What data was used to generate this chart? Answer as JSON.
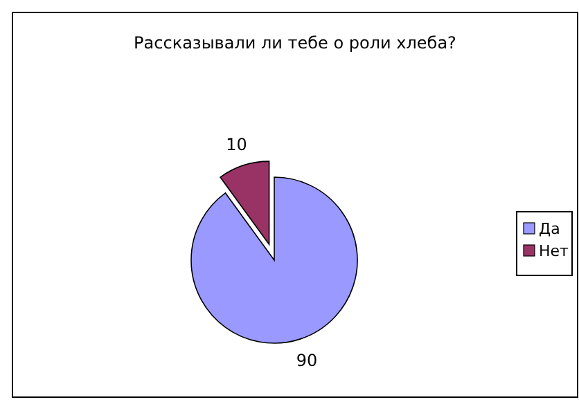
{
  "chart_data": {
    "type": "pie",
    "title": "Рассказывали ли тебе о роли хлеба?",
    "categories": [
      "Да",
      "Нет"
    ],
    "values": [
      90,
      10
    ],
    "colors": [
      "#9999ff",
      "#993366"
    ],
    "data_labels": true,
    "legend": "right"
  }
}
